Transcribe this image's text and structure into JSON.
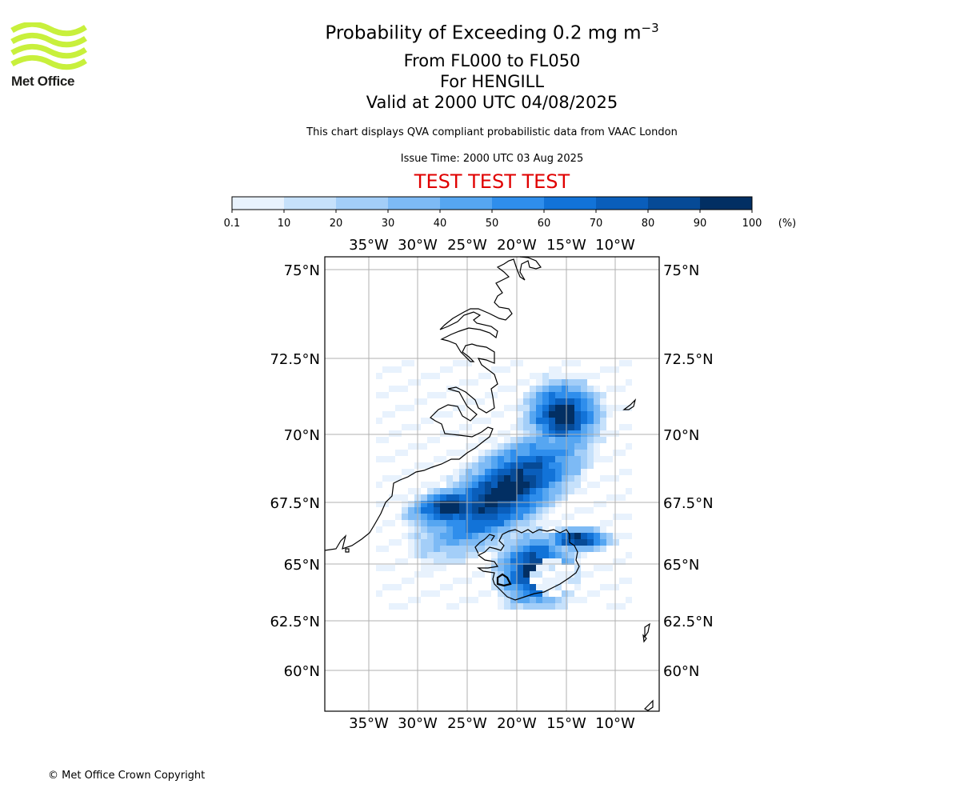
{
  "header": {
    "title_prefix": "Probability of Exceeding 0.2 mg m",
    "title_superscript": "−3",
    "flight_levels": "From FL000 to FL050",
    "location": "For HENGILL",
    "valid_time": "Valid at 2000 UTC 04/08/2025",
    "description": "This chart displays QVA compliant probabilistic data from VAAC London",
    "issue_time": "Issue Time: 2000 UTC 03 Aug 2025",
    "test_banner": "TEST TEST TEST",
    "test_color": "#e00000"
  },
  "logo": {
    "text": "Met Office",
    "icon": "met-office-wave-logo",
    "color": "#c8f03c"
  },
  "colorbar": {
    "ticks": [
      "0.1",
      "10",
      "20",
      "30",
      "40",
      "50",
      "60",
      "70",
      "80",
      "90",
      "100"
    ],
    "unit": "(%)",
    "colors": [
      "#e8f2fd",
      "#c6e1fb",
      "#a3cef8",
      "#7dbaf5",
      "#56a6f1",
      "#2f8eec",
      "#1273d8",
      "#0a5ebb",
      "#064a96",
      "#022f63"
    ]
  },
  "map": {
    "top_lon_labels": [
      "35°W",
      "30°W",
      "25°W",
      "20°W",
      "15°W",
      "10°W"
    ],
    "bottom_lon_labels": [
      "35°W",
      "30°W",
      "25°W",
      "20°W",
      "15°W",
      "10°W"
    ],
    "left_lat_labels": [
      "75°N",
      "72.5°N",
      "70°N",
      "67.5°N",
      "65°N",
      "62.5°N",
      "60°N"
    ],
    "right_lat_labels": [
      "75°N",
      "72.5°N",
      "70°N",
      "67.5°N",
      "65°N",
      "62.5°N",
      "60°N"
    ],
    "grid_color": "#b0b0b0"
  },
  "footer": {
    "copyright": "© Met Office Crown Copyright"
  }
}
